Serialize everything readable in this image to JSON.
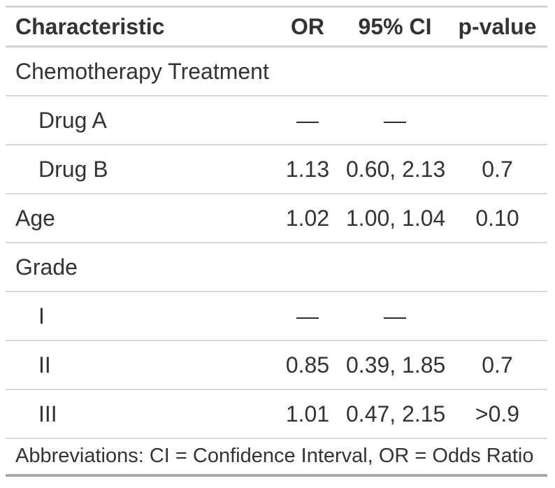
{
  "table": {
    "columns": {
      "characteristic": "Characteristic",
      "or": "OR",
      "ci": "95% CI",
      "p": "p-value"
    },
    "rows": [
      {
        "label": "Chemotherapy Treatment",
        "or": "",
        "ci": "",
        "p": "",
        "indent": false,
        "group": true
      },
      {
        "label": "Drug A",
        "or": "—",
        "ci": "—",
        "p": "",
        "indent": true,
        "group": false
      },
      {
        "label": "Drug B",
        "or": "1.13",
        "ci": "0.60, 2.13",
        "p": "0.7",
        "indent": true,
        "group": false
      },
      {
        "label": "Age",
        "or": "1.02",
        "ci": "1.00, 1.04",
        "p": "0.10",
        "indent": false,
        "group": false
      },
      {
        "label": "Grade",
        "or": "",
        "ci": "",
        "p": "",
        "indent": false,
        "group": true
      },
      {
        "label": "I",
        "or": "—",
        "ci": "—",
        "p": "",
        "indent": true,
        "group": false
      },
      {
        "label": "II",
        "or": "0.85",
        "ci": "0.39, 1.85",
        "p": "0.7",
        "indent": true,
        "group": false
      },
      {
        "label": "III",
        "or": "1.01",
        "ci": "0.47, 2.15",
        "p": ">0.9",
        "indent": true,
        "group": false
      }
    ],
    "footnote": "Abbreviations: CI = Confidence Interval, OR = Odds Ratio"
  },
  "colors": {
    "border_light": "#D4D4D4",
    "border_row": "#D7D7D7",
    "border_bottom": "#A8A8A8",
    "text": "#333333",
    "background": "#FFFFFF"
  }
}
